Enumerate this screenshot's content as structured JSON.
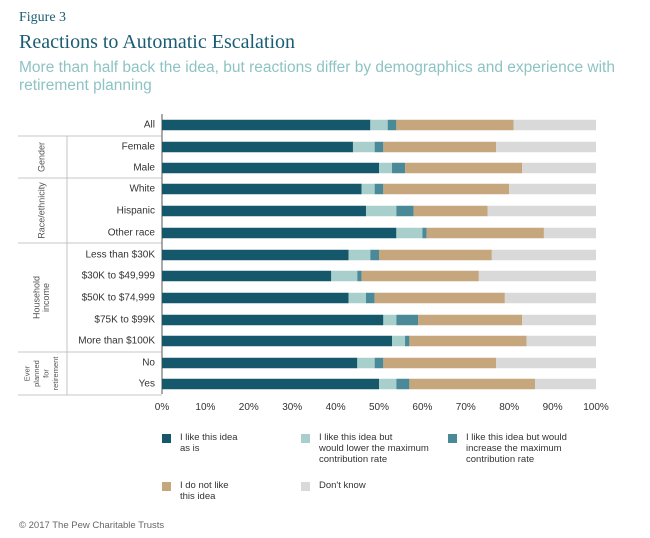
{
  "figure_label": "Figure 3",
  "title": "Reactions to Automatic Escalation",
  "subtitle": "More than half back the idea, but reactions differ by demographics and experience with retirement planning",
  "copyright": "© 2017 The Pew Charitable Trusts",
  "colors": {
    "title": "#1a5c73",
    "subtitle": "#8ec3c5",
    "series": [
      "#15586b",
      "#a8cfcc",
      "#4a8a98",
      "#c6a67c",
      "#d9d9d9"
    ]
  },
  "chart_data": {
    "type": "bar",
    "orientation": "horizontal",
    "stacked": true,
    "categories": [
      "All",
      "Female",
      "Male",
      "White",
      "Hispanic",
      "Other race",
      "Less than $30K",
      "$30K to $49,999",
      "$50K to $74,999",
      "$75K to $99K",
      "More than $100K",
      "No",
      "Yes"
    ],
    "groups": [
      {
        "label": "",
        "rows": [
          0
        ]
      },
      {
        "label": "Gender",
        "rows": [
          1,
          2
        ]
      },
      {
        "label": "Race/ethnicity",
        "rows": [
          3,
          4,
          5
        ]
      },
      {
        "label": "Household income",
        "rows": [
          6,
          7,
          8,
          9,
          10
        ]
      },
      {
        "label": "Ever planned for retirement",
        "rows": [
          11,
          12
        ]
      }
    ],
    "series": [
      {
        "name": "I like this idea as is",
        "values": [
          48,
          44,
          50,
          46,
          47,
          54,
          43,
          39,
          43,
          51,
          53,
          45,
          50
        ]
      },
      {
        "name": "I like this idea but would lower the maximum contribution rate",
        "values": [
          4,
          5,
          3,
          3,
          7,
          6,
          5,
          6,
          4,
          3,
          3,
          4,
          4
        ]
      },
      {
        "name": "I like this idea but would increase the maximum contribution rate",
        "values": [
          2,
          2,
          3,
          2,
          4,
          1,
          2,
          1,
          2,
          5,
          1,
          2,
          3
        ]
      },
      {
        "name": "I do not like this idea",
        "values": [
          27,
          26,
          27,
          29,
          17,
          27,
          26,
          27,
          30,
          24,
          27,
          26,
          29
        ]
      },
      {
        "name": "Don't know",
        "values": [
          19,
          23,
          17,
          20,
          25,
          12,
          24,
          27,
          21,
          17,
          16,
          23,
          14
        ]
      }
    ],
    "xlim": [
      0,
      100
    ],
    "x_ticks": [
      "0%",
      "10%",
      "20%",
      "30%",
      "40%",
      "50%",
      "60%",
      "70%",
      "80%",
      "90%",
      "100%"
    ],
    "legend_position": "bottom",
    "grid": false
  }
}
